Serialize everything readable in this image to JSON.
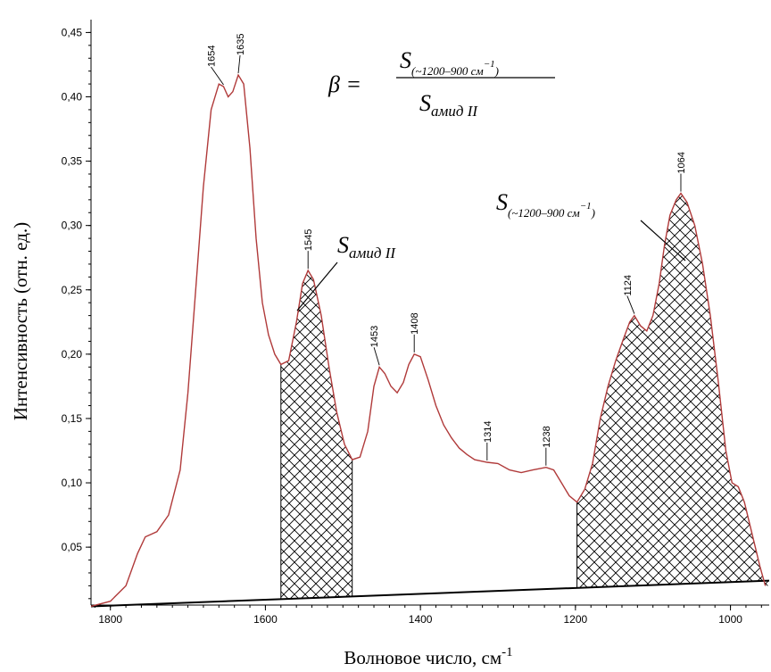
{
  "chart_data": {
    "type": "line",
    "xlabel": "Волновое число, см",
    "xlabel_sup": "-1",
    "ylabel": "Интенсивность (отн. ед.)",
    "xlim": [
      1825,
      950
    ],
    "ylim": [
      0.005,
      0.46
    ],
    "x_reversed": true,
    "x_ticks": [
      {
        "value": 1800,
        "label": "1800"
      },
      {
        "value": 1600,
        "label": "1600"
      },
      {
        "value": 1400,
        "label": "1400"
      },
      {
        "value": 1200,
        "label": "1200"
      },
      {
        "value": 1000,
        "label": "1000"
      }
    ],
    "y_ticks": [
      {
        "value": 0.05,
        "label": "0,05"
      },
      {
        "value": 0.1,
        "label": "0,10"
      },
      {
        "value": 0.15,
        "label": "0,15"
      },
      {
        "value": 0.2,
        "label": "0,20"
      },
      {
        "value": 0.25,
        "label": "0,25"
      },
      {
        "value": 0.3,
        "label": "0,30"
      },
      {
        "value": 0.35,
        "label": "0,35"
      },
      {
        "value": 0.4,
        "label": "0,40"
      },
      {
        "value": 0.45,
        "label": "0,45"
      }
    ],
    "series": [
      {
        "color": "#b03a3a",
        "points": [
          [
            1825,
            0.004
          ],
          [
            1800,
            0.008
          ],
          [
            1780,
            0.02
          ],
          [
            1765,
            0.045
          ],
          [
            1755,
            0.058
          ],
          [
            1740,
            0.062
          ],
          [
            1725,
            0.075
          ],
          [
            1710,
            0.11
          ],
          [
            1700,
            0.17
          ],
          [
            1690,
            0.25
          ],
          [
            1680,
            0.33
          ],
          [
            1670,
            0.39
          ],
          [
            1660,
            0.41
          ],
          [
            1654,
            0.408
          ],
          [
            1648,
            0.4
          ],
          [
            1642,
            0.404
          ],
          [
            1635,
            0.417
          ],
          [
            1628,
            0.41
          ],
          [
            1620,
            0.36
          ],
          [
            1612,
            0.29
          ],
          [
            1604,
            0.24
          ],
          [
            1596,
            0.215
          ],
          [
            1588,
            0.2
          ],
          [
            1580,
            0.192
          ],
          [
            1570,
            0.195
          ],
          [
            1560,
            0.225
          ],
          [
            1552,
            0.255
          ],
          [
            1545,
            0.265
          ],
          [
            1538,
            0.258
          ],
          [
            1528,
            0.23
          ],
          [
            1518,
            0.19
          ],
          [
            1508,
            0.155
          ],
          [
            1498,
            0.13
          ],
          [
            1488,
            0.118
          ],
          [
            1478,
            0.12
          ],
          [
            1468,
            0.14
          ],
          [
            1460,
            0.175
          ],
          [
            1453,
            0.19
          ],
          [
            1446,
            0.185
          ],
          [
            1438,
            0.175
          ],
          [
            1430,
            0.17
          ],
          [
            1422,
            0.178
          ],
          [
            1415,
            0.192
          ],
          [
            1408,
            0.2
          ],
          [
            1400,
            0.198
          ],
          [
            1390,
            0.18
          ],
          [
            1380,
            0.16
          ],
          [
            1370,
            0.145
          ],
          [
            1360,
            0.135
          ],
          [
            1350,
            0.127
          ],
          [
            1340,
            0.122
          ],
          [
            1330,
            0.118
          ],
          [
            1314,
            0.116
          ],
          [
            1300,
            0.115
          ],
          [
            1285,
            0.11
          ],
          [
            1270,
            0.108
          ],
          [
            1255,
            0.11
          ],
          [
            1238,
            0.112
          ],
          [
            1228,
            0.11
          ],
          [
            1218,
            0.1
          ],
          [
            1208,
            0.09
          ],
          [
            1198,
            0.085
          ],
          [
            1188,
            0.095
          ],
          [
            1178,
            0.115
          ],
          [
            1168,
            0.15
          ],
          [
            1158,
            0.175
          ],
          [
            1148,
            0.195
          ],
          [
            1138,
            0.212
          ],
          [
            1130,
            0.225
          ],
          [
            1124,
            0.23
          ],
          [
            1116,
            0.222
          ],
          [
            1108,
            0.218
          ],
          [
            1100,
            0.23
          ],
          [
            1092,
            0.255
          ],
          [
            1085,
            0.285
          ],
          [
            1078,
            0.308
          ],
          [
            1070,
            0.32
          ],
          [
            1064,
            0.325
          ],
          [
            1056,
            0.318
          ],
          [
            1046,
            0.3
          ],
          [
            1036,
            0.27
          ],
          [
            1026,
            0.23
          ],
          [
            1016,
            0.18
          ],
          [
            1006,
            0.125
          ],
          [
            998,
            0.1
          ],
          [
            990,
            0.097
          ],
          [
            982,
            0.085
          ],
          [
            972,
            0.06
          ],
          [
            962,
            0.035
          ],
          [
            955,
            0.02
          ]
        ]
      }
    ],
    "baseline": {
      "from": [
        1825,
        0.004
      ],
      "to": [
        950,
        0.024
      ]
    },
    "hatched_regions": [
      {
        "from": 1580,
        "to": 1488
      },
      {
        "from": 1198,
        "to": 950
      }
    ],
    "peak_labels": [
      {
        "x": 1654,
        "label": "1654"
      },
      {
        "x": 1635,
        "label": "1635"
      },
      {
        "x": 1545,
        "label": "1545"
      },
      {
        "x": 1453,
        "label": "1453"
      },
      {
        "x": 1408,
        "label": "1408"
      },
      {
        "x": 1314,
        "label": "1314"
      },
      {
        "x": 1238,
        "label": "1238"
      },
      {
        "x": 1124,
        "label": "1124"
      },
      {
        "x": 1064,
        "label": "1064"
      }
    ],
    "annotations": {
      "formula_lhs": "β =",
      "formula_num_s": "S",
      "formula_num_sub": "(~1200–900 см",
      "formula_num_sup": "−1",
      "formula_num_close": ")",
      "formula_den_s": "S",
      "formula_den_sub": "амид II",
      "amide_s": "S",
      "amide_sub": "амид II",
      "region_s": "S",
      "region_sub": "(~1200–900 см",
      "region_sup": "−1",
      "region_close": ")"
    }
  }
}
